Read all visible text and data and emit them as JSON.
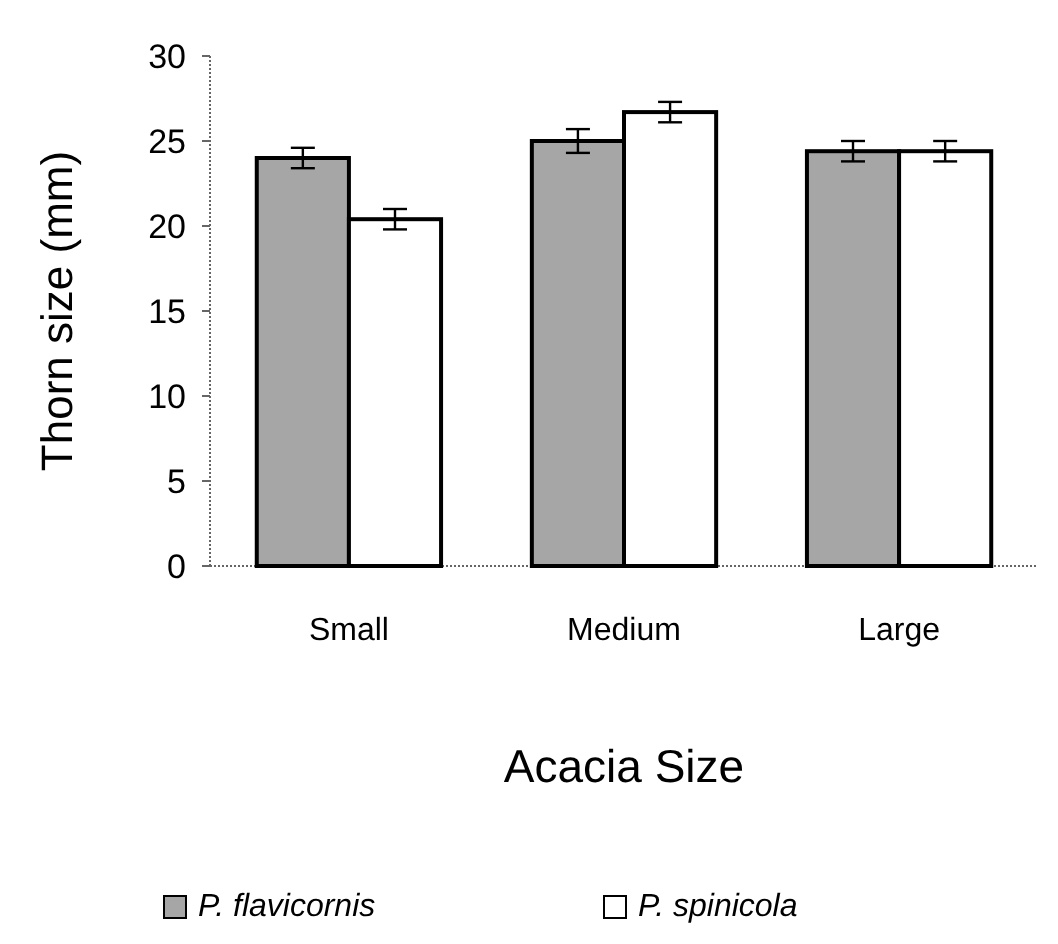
{
  "chart_data": {
    "type": "bar",
    "xlabel": "Acacia Size",
    "ylabel": "Thorn size (mm)",
    "categories": [
      "Small",
      "Medium",
      "Large"
    ],
    "series": [
      {
        "name": "P. flavicornis",
        "color": "#a6a6a6",
        "values": [
          24.0,
          25.0,
          24.4
        ],
        "errors": [
          0.6,
          0.7,
          0.6
        ]
      },
      {
        "name": "P. spinicola",
        "color": "#ffffff",
        "values": [
          20.4,
          26.7,
          24.4
        ],
        "errors": [
          0.6,
          0.6,
          0.6
        ]
      }
    ],
    "ylim": [
      0,
      30
    ],
    "yticks": [
      0,
      5,
      10,
      15,
      20,
      25,
      30
    ],
    "grid": false,
    "legend": "bottom"
  }
}
